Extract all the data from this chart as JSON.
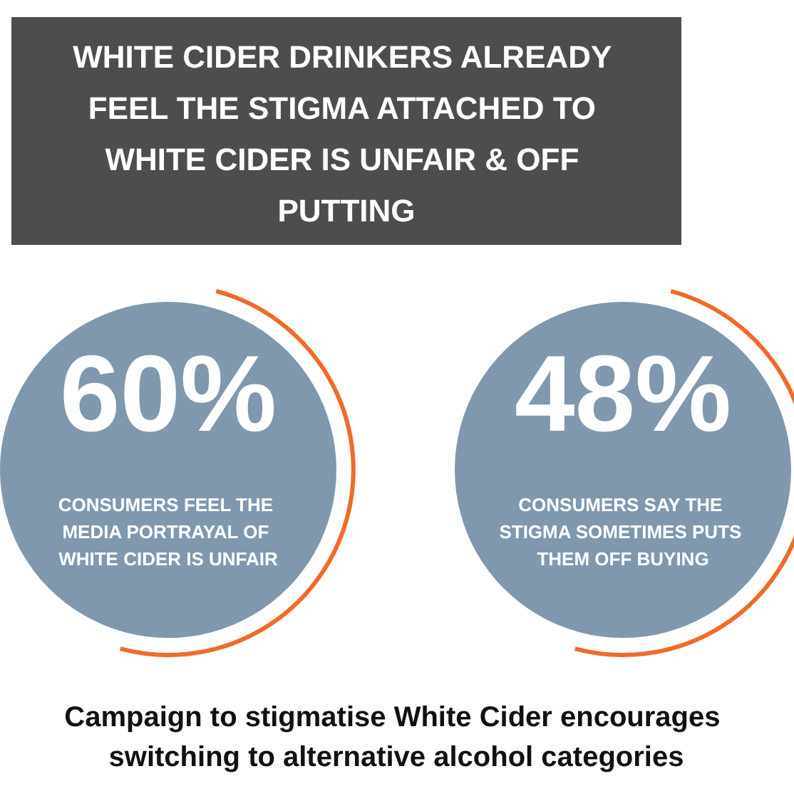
{
  "chart_data": {
    "type": "other",
    "title": "WHITE CIDER DRINKERS ALREADY FEEL THE STIGMA ATTACHED TO WHITE CIDER IS UNFAIR & OFF PUTTING",
    "categories": [
      "CONSUMERS FEEL THE MEDIA PORTRAYAL OF WHITE CIDER IS UNFAIR",
      "CONSUMERS SAY THE STIGMA SOMETIMES PUTS THEM OFF BUYING"
    ],
    "values": [
      60,
      48
    ],
    "value_labels": [
      "60%",
      "48%"
    ],
    "color": "#7f98ad",
    "annotations": [
      "Campaign to stigmatise White Cider encourages switching to alternative alcohol categories"
    ]
  }
}
